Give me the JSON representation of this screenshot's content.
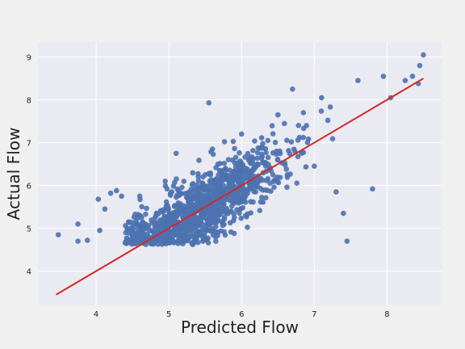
{
  "chart_data": {
    "type": "scatter",
    "title": "",
    "xlabel": "Predicted Flow",
    "ylabel": "Actual Flow",
    "xlim": [
      3.2,
      8.75
    ],
    "ylim": [
      3.2,
      9.35
    ],
    "xticks": [
      4,
      5,
      6,
      7,
      8
    ],
    "yticks": [
      4,
      5,
      6,
      7,
      8,
      9
    ],
    "grid": true,
    "legend": "none",
    "colors": {
      "background": "#f0f0f0",
      "plot_background": "#eaeaf2",
      "grid": "#ffffff",
      "points": "#4c72b0",
      "fit_line": "#d62728"
    },
    "fit_line": {
      "x": [
        3.45,
        8.5
      ],
      "y": [
        3.45,
        8.5
      ]
    },
    "points_sample": {
      "x": [
        3.48,
        3.75,
        3.75,
        3.88,
        4.03,
        4.05,
        4.12,
        4.2,
        4.28,
        4.35,
        4.6,
        4.95,
        5.1,
        5.5,
        5.55,
        5.6,
        6.0,
        6.5,
        6.7,
        6.85,
        7.0,
        7.1,
        7.3,
        7.4,
        7.45,
        7.6,
        7.8,
        7.95,
        8.05,
        8.25,
        8.35,
        8.43,
        8.45,
        8.5
      ],
      "y": [
        4.85,
        5.1,
        4.7,
        4.72,
        5.68,
        4.95,
        5.45,
        5.82,
        5.88,
        5.75,
        5.75,
        6.1,
        6.75,
        6.25,
        7.93,
        6.85,
        7.2,
        7.65,
        8.25,
        7.7,
        6.45,
        8.05,
        5.85,
        5.35,
        4.7,
        8.45,
        5.92,
        8.55,
        8.05,
        8.45,
        8.55,
        8.38,
        8.8,
        9.05
      ]
    }
  }
}
